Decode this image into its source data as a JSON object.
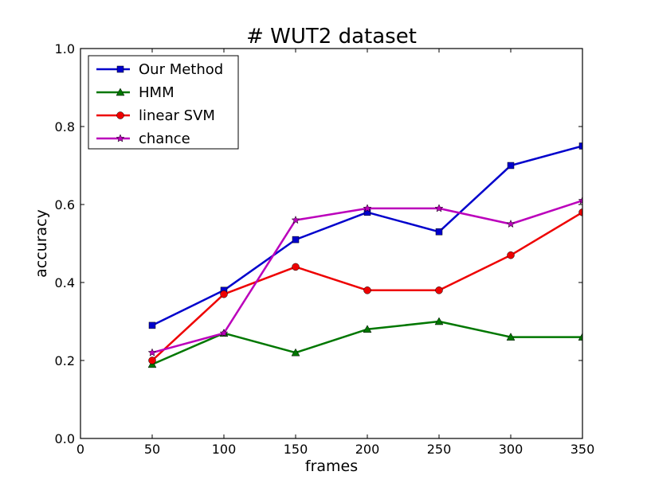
{
  "chart_data": {
    "type": "line",
    "title": "# WUT2 dataset",
    "xlabel": "frames",
    "ylabel": "accuracy",
    "xlim": [
      0,
      350
    ],
    "ylim": [
      0.0,
      1.0
    ],
    "x_ticks": [
      0,
      50,
      100,
      150,
      200,
      250,
      300,
      350
    ],
    "y_ticks": [
      "0.0",
      "0.2",
      "0.4",
      "0.6",
      "0.8",
      "1.0"
    ],
    "grid": false,
    "legend_position": "top-left",
    "x": [
      50,
      100,
      150,
      200,
      250,
      300,
      350
    ],
    "series": [
      {
        "name": "Our Method",
        "color": "#0000cc",
        "marker": "square",
        "values": [
          0.29,
          0.38,
          0.51,
          0.58,
          0.53,
          0.7,
          0.75
        ]
      },
      {
        "name": "HMM",
        "color": "#007700",
        "marker": "triangle",
        "values": [
          0.19,
          0.27,
          0.22,
          0.28,
          0.3,
          0.26,
          0.26
        ]
      },
      {
        "name": "linear SVM",
        "color": "#ee0000",
        "marker": "circle",
        "values": [
          0.2,
          0.37,
          0.44,
          0.38,
          0.38,
          0.47,
          0.58
        ]
      },
      {
        "name": "chance",
        "color": "#bb00bb",
        "marker": "star",
        "values": [
          0.22,
          0.27,
          0.56,
          0.59,
          0.59,
          0.55,
          0.61
        ]
      }
    ]
  }
}
